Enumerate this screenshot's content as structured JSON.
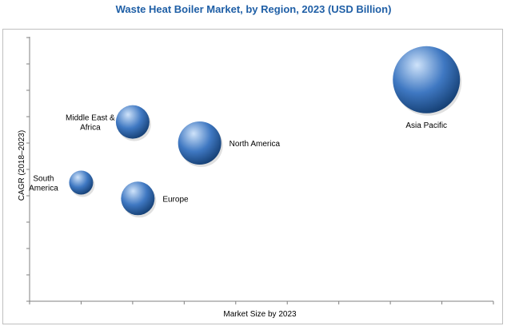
{
  "chart_data": {
    "type": "bubble",
    "title": "Waste Heat Boiler Market, by Region, 2023 (USD Billion)",
    "xlabel": "Market Size by 2023",
    "ylabel": "CAGR (2018–2023)",
    "grid": false,
    "x_ticks": 9,
    "y_ticks": 11,
    "colors": {
      "bubble": "#3f78c2",
      "bubble_highlight": "#cfe3fa",
      "bubble_dark": "#143e72",
      "title": "#1f5fa6",
      "axis": "#808080"
    },
    "series": [
      {
        "label_lines": [
          "Asia Pacific"
        ],
        "x": 7.7,
        "y": 8.4,
        "size": 42,
        "label_pos": "below"
      },
      {
        "label_lines": [
          "North America"
        ],
        "x": 3.3,
        "y": 6.0,
        "size": 27,
        "label_pos": "right"
      },
      {
        "label_lines": [
          "Middle East  &",
          "Africa"
        ],
        "x": 2.0,
        "y": 6.8,
        "size": 21,
        "label_pos": "left"
      },
      {
        "label_lines": [
          "South",
          "America"
        ],
        "x": 1.0,
        "y": 4.5,
        "size": 15,
        "label_pos": "left"
      },
      {
        "label_lines": [
          "Europe"
        ],
        "x": 2.1,
        "y": 3.9,
        "size": 21,
        "label_pos": "right"
      }
    ]
  }
}
